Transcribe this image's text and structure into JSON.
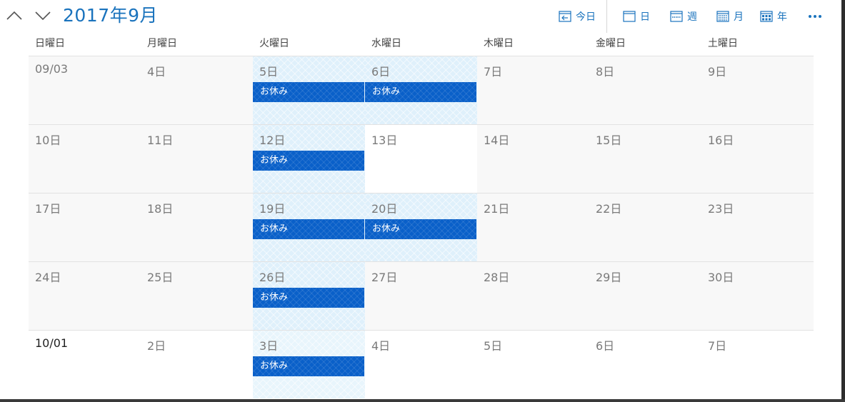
{
  "header": {
    "title": "2017年9月",
    "prev_icon": "chevron-up-icon",
    "next_icon": "chevron-down-icon"
  },
  "toolbar": {
    "today_label": "今日",
    "day_label": "日",
    "week_label": "週",
    "month_label": "月",
    "year_label": "年",
    "more_icon": "more-icon",
    "accent_color": "#1a73bd"
  },
  "weekdays": [
    "日曜日",
    "月曜日",
    "火曜日",
    "水曜日",
    "木曜日",
    "金曜日",
    "土曜日"
  ],
  "weeks": [
    [
      "09/03",
      "4日",
      "5日",
      "6日",
      "7日",
      "8日",
      "9日"
    ],
    [
      "10日",
      "11日",
      "12日",
      "13日",
      "14日",
      "15日",
      "16日"
    ],
    [
      "17日",
      "18日",
      "19日",
      "20日",
      "21日",
      "22日",
      "23日"
    ],
    [
      "24日",
      "25日",
      "26日",
      "27日",
      "28日",
      "29日",
      "30日"
    ],
    [
      "10/01",
      "2日",
      "3日",
      "4日",
      "5日",
      "6日",
      "7日"
    ]
  ],
  "event_label": "お休み",
  "event_color": "#0a60c9",
  "holiday_color": "#dff0fb"
}
